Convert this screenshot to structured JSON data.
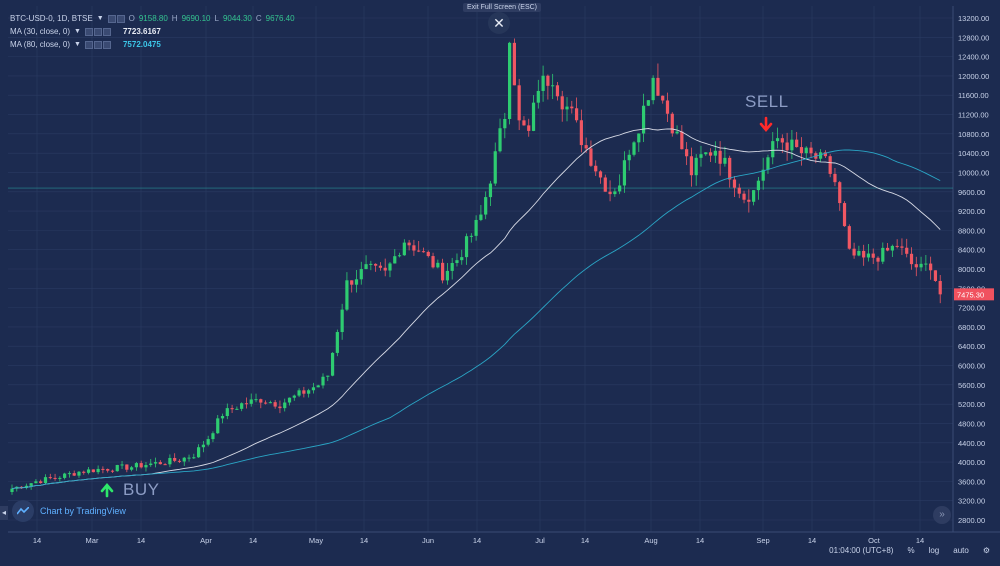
{
  "legend": {
    "symbol": "BTC-USD-0, 1D, BTSE",
    "open_key": "O",
    "open": "9158.80",
    "high_key": "H",
    "high": "9690.10",
    "low_key": "L",
    "low": "9044.30",
    "close_key": "C",
    "close": "9676.40",
    "ma30_label": "MA (30, close, 0)",
    "ma30_value": "7723.6167",
    "ma80_label": "MA (80, close, 0)",
    "ma80_value": "7572.0475"
  },
  "exit_fullscreen": "Exit Full Screen (ESC)",
  "signals": {
    "buy": "BUY",
    "sell": "SELL"
  },
  "branding": "Chart by TradingView",
  "footer": {
    "time": "01:04:00 (UTC+8)",
    "percent": "%",
    "log": "log",
    "auto": "auto"
  },
  "price_tag": "7475.30",
  "colors": {
    "up": "#2ecc71",
    "down": "#f05763",
    "ma30": "#d8dbe6",
    "ma80": "#2aa5c5",
    "background": "#1c2b50",
    "grid": "#2a3b62",
    "price_tag": "#f0525f"
  },
  "chart_data": {
    "type": "candlestick",
    "y_axis": {
      "ticks": [
        "13200.00",
        "12800.00",
        "12400.00",
        "12000.00",
        "11600.00",
        "11200.00",
        "10800.00",
        "10400.00",
        "10000.00",
        "9600.00",
        "9200.00",
        "8800.00",
        "8400.00",
        "8000.00",
        "7600.00",
        "7200.00",
        "6800.00",
        "6400.00",
        "6000.00",
        "5600.00",
        "5200.00",
        "4800.00",
        "4400.00",
        "4000.00",
        "3600.00",
        "3200.00",
        "2800.00"
      ],
      "min": 2600,
      "max": 13400
    },
    "x_axis": {
      "ticks": [
        "14",
        "Mar",
        "14",
        "Apr",
        "14",
        "May",
        "14",
        "Jun",
        "14",
        "Jul",
        "14",
        "Aug",
        "14",
        "Sep",
        "14",
        "Oct",
        "14"
      ]
    },
    "horizontal_line": 9676.4,
    "close_anchors": [
      [
        0,
        3450
      ],
      [
        5,
        3600
      ],
      [
        10,
        3700
      ],
      [
        14,
        3800
      ],
      [
        18,
        3850
      ],
      [
        22,
        3880
      ],
      [
        25,
        3900
      ],
      [
        28,
        3950
      ],
      [
        32,
        4000
      ],
      [
        35,
        4050
      ],
      [
        38,
        4150
      ],
      [
        41,
        4500
      ],
      [
        44,
        5000
      ],
      [
        48,
        5200
      ],
      [
        52,
        5300
      ],
      [
        56,
        5200
      ],
      [
        60,
        5400
      ],
      [
        64,
        5600
      ],
      [
        66,
        5800
      ],
      [
        70,
        7700
      ],
      [
        74,
        8000
      ],
      [
        78,
        7900
      ],
      [
        82,
        8600
      ],
      [
        85,
        8400
      ],
      [
        88,
        8100
      ],
      [
        90,
        7900
      ],
      [
        93,
        8200
      ],
      [
        96,
        8700
      ],
      [
        98,
        9100
      ],
      [
        100,
        9900
      ],
      [
        103,
        11200
      ],
      [
        104,
        12900
      ],
      [
        106,
        11000
      ],
      [
        108,
        10800
      ],
      [
        110,
        11800
      ],
      [
        113,
        12000
      ],
      [
        115,
        11500
      ],
      [
        117,
        11200
      ],
      [
        119,
        10700
      ],
      [
        121,
        10300
      ],
      [
        123,
        9900
      ],
      [
        125,
        9600
      ],
      [
        127,
        9800
      ],
      [
        129,
        10500
      ],
      [
        131,
        11000
      ],
      [
        134,
        12000
      ],
      [
        136,
        11500
      ],
      [
        138,
        11000
      ],
      [
        140,
        10500
      ],
      [
        142,
        10000
      ],
      [
        144,
        10300
      ],
      [
        147,
        10500
      ],
      [
        150,
        10000
      ],
      [
        153,
        9500
      ],
      [
        155,
        9600
      ],
      [
        157,
        10100
      ],
      [
        160,
        10700
      ],
      [
        162,
        10600
      ],
      [
        165,
        10400
      ],
      [
        168,
        10300
      ],
      [
        170,
        10200
      ],
      [
        172,
        9800
      ],
      [
        175,
        8300
      ],
      [
        178,
        8200
      ],
      [
        182,
        8300
      ],
      [
        185,
        8500
      ],
      [
        188,
        8100
      ],
      [
        190,
        8000
      ],
      [
        192,
        8100
      ],
      [
        194,
        7475
      ]
    ],
    "ma30_last": 7723.6167,
    "ma80_last": 7572.0475
  }
}
